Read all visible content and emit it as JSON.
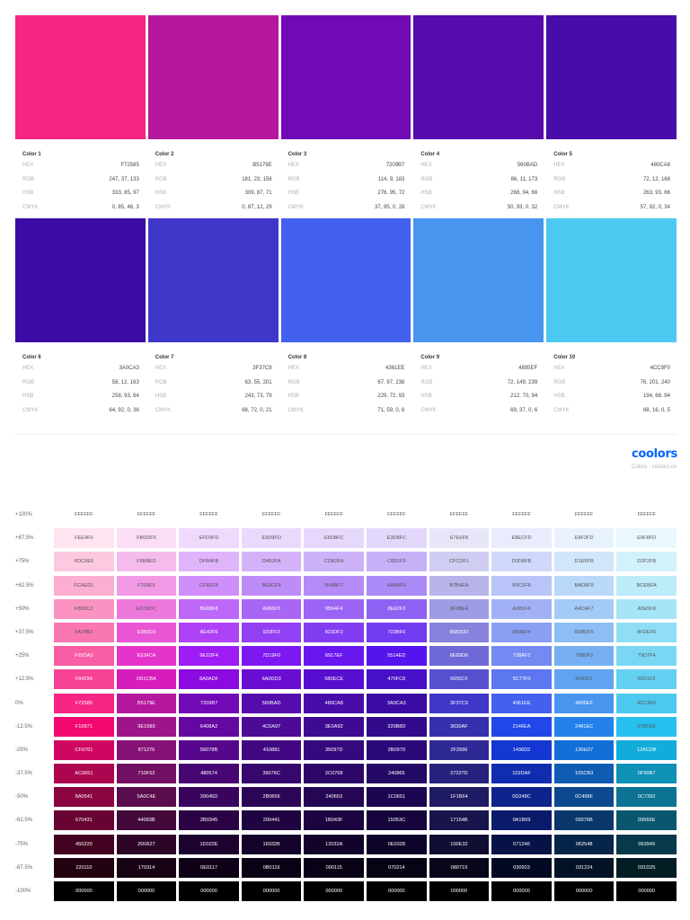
{
  "colors": [
    {
      "name": "Color 1",
      "hex": "F72585",
      "rgb": "247, 37, 133",
      "hsb": "333, 85, 97",
      "cmyk": "0, 85, 46, 3",
      "swatch": "#F72585"
    },
    {
      "name": "Color 2",
      "hex": "B5179E",
      "rgb": "181, 23, 158",
      "hsb": "309, 87, 71",
      "cmyk": "0, 87, 12, 29",
      "swatch": "#B5179E"
    },
    {
      "name": "Color 3",
      "hex": "7209B7",
      "rgb": "114, 9, 183",
      "hsb": "276, 95, 72",
      "cmyk": "37, 95, 0, 28",
      "swatch": "#7209B7"
    },
    {
      "name": "Color 4",
      "hex": "560BAD",
      "rgb": "86, 11, 173",
      "hsb": "268, 94, 68",
      "cmyk": "50, 93, 0, 32",
      "swatch": "#560BAD"
    },
    {
      "name": "Color 5",
      "hex": "480CA8",
      "rgb": "72, 12, 168",
      "hsb": "263, 93, 66",
      "cmyk": "57, 92, 0, 34",
      "swatch": "#480CA8"
    },
    {
      "name": "Color 6",
      "hex": "3A0CA3",
      "rgb": "58, 12, 163",
      "hsb": "258, 93, 64",
      "cmyk": "64, 92, 0, 36",
      "swatch": "#3A0CA3"
    },
    {
      "name": "Color 7",
      "hex": "3F37C9",
      "rgb": "63, 55, 201",
      "hsb": "243, 73, 79",
      "cmyk": "68, 72, 0, 21",
      "swatch": "#3F37C9"
    },
    {
      "name": "Color 8",
      "hex": "4361EE",
      "rgb": "67, 97, 238",
      "hsb": "229, 72, 93",
      "cmyk": "71, 59, 0, 6",
      "swatch": "#4361EE"
    },
    {
      "name": "Color 9",
      "hex": "4895EF",
      "rgb": "72, 149, 239",
      "hsb": "212, 70, 94",
      "cmyk": "69, 37, 0, 6",
      "swatch": "#4895EF"
    },
    {
      "name": "Color 10",
      "hex": "4CC9F0",
      "rgb": "76, 201, 240",
      "hsb": "194, 68, 94",
      "cmyk": "68, 16, 0, 5",
      "swatch": "#4CC9F0"
    }
  ],
  "field_labels": {
    "hex": "HEX",
    "rgb": "RGB",
    "hsb": "HSB",
    "cmyk": "CMYK"
  },
  "brand": {
    "logo": "coolors",
    "credit": "Colors - coolors.co"
  },
  "shades": [
    {
      "label": "+100%",
      "cells": [
        "FFFFFF",
        "FFFFFF",
        "FFFFFF",
        "FFFFFF",
        "FFFFFF",
        "FFFFFF",
        "FFFFFF",
        "FFFFFF",
        "FFFFFF",
        "FFFFFF"
      ]
    },
    {
      "label": "+87.5%",
      "cells": [
        "FEE4F0",
        "FBDDF6",
        "EFD9FD",
        "E9D9FD",
        "E6D8FC",
        "E3D8FC",
        "E7E6F8",
        "E8ECFD",
        "E8F2FD",
        "E9F8FD"
      ]
    },
    {
      "label": "+75%",
      "cells": [
        "FDC9E0",
        "F6BBED",
        "DFB4FB",
        "D4B2FA",
        "CDB2FA",
        "C6B1F9",
        "CFCDF1",
        "D0D8FB",
        "D1E5FB",
        "D2F2FB"
      ]
    },
    {
      "label": "+62.5%",
      "cells": [
        "FCAED1",
        "F299E5",
        "CF8EFA",
        "BE8CF8",
        "B48BF7",
        "AA8AF6",
        "B7B4EA",
        "B9C5F8",
        "BAD8F9",
        "BCEBFA"
      ]
    },
    {
      "label": "+50%",
      "cells": [
        "FB93C2",
        "ED78DC",
        "BE68F8",
        "A966F5",
        "9B64F4",
        "8E62F3",
        "9F9BE4",
        "A2B1F6",
        "A4CAF7",
        "A5E5F8"
      ]
    },
    {
      "label": "+37.5%",
      "cells": [
        "FA78B2",
        "E956D3",
        "AE42F6",
        "933FF3",
        "823DF2",
        "723BF0",
        "8682DD",
        "8A9EF4",
        "8DBDF5",
        "8FDEF6"
      ]
    },
    {
      "label": "+25%",
      "cells": [
        "F95DA3",
        "E534CA",
        "9E1DF4",
        "7D19F0",
        "6917EF",
        "5514ED",
        "6E69D6",
        "738AF2",
        "76B0F3",
        "79D7F4"
      ]
    },
    {
      "label": "+12.5%",
      "cells": [
        "F84294",
        "D61CBA",
        "8A0ADF",
        "6A0DD3",
        "580ECE",
        "470FC8",
        "5650CF",
        "5C77F0",
        "5FA3F1",
        "62D1F2"
      ]
    },
    {
      "label": "0%",
      "cells": [
        "F72585",
        "B5179E",
        "7209B7",
        "560BAD",
        "480CA8",
        "3A0CA3",
        "3F37C9",
        "4361EE",
        "4895EF",
        "4CC9F0"
      ]
    },
    {
      "label": "-12.5%",
      "cells": [
        "F10971",
        "9E1589",
        "6408A2",
        "4C0A97",
        "3E0A92",
        "320B8D",
        "3630AF",
        "2146EA",
        "2481EC",
        "27BFEE"
      ]
    },
    {
      "label": "-25%",
      "cells": [
        "CF0761",
        "871276",
        "56078B",
        "410881",
        "35097D",
        "2B0979",
        "2F2996",
        "1436D2",
        "136ED7",
        "12ACDB"
      ]
    },
    {
      "label": "-37.5%",
      "cells": [
        "AC0651",
        "710F62",
        "480574",
        "36076C",
        "2C0768",
        "240865",
        "27227D",
        "102DAF",
        "105CB3",
        "0F90B7"
      ]
    },
    {
      "label": "-50%",
      "cells": [
        "8A0541",
        "5A0C4E",
        "39045D",
        "2B0656",
        "240653",
        "1C0651",
        "1F1B64",
        "0D248C",
        "0C498F",
        "0C7392"
      ]
    },
    {
      "label": "-62.5%",
      "cells": [
        "670431",
        "44093B",
        "2B0345",
        "200441",
        "1B043F",
        "15053C",
        "17154B",
        "0A1B69",
        "09376B",
        "09566E"
      ]
    },
    {
      "label": "-75%",
      "cells": [
        "450220",
        "2D0627",
        "1D022E",
        "16032B",
        "12032A",
        "0E0328",
        "100E32",
        "071246",
        "062548",
        "063949"
      ]
    },
    {
      "label": "-87.5%",
      "cells": [
        "220110",
        "170314",
        "0E0117",
        "0B0116",
        "090115",
        "070214",
        "080719",
        "030923",
        "031224",
        "031D25"
      ]
    },
    {
      "label": "-100%",
      "cells": [
        "000000",
        "000000",
        "000000",
        "000000",
        "000000",
        "000000",
        "000000",
        "000000",
        "000000",
        "000000"
      ]
    }
  ]
}
